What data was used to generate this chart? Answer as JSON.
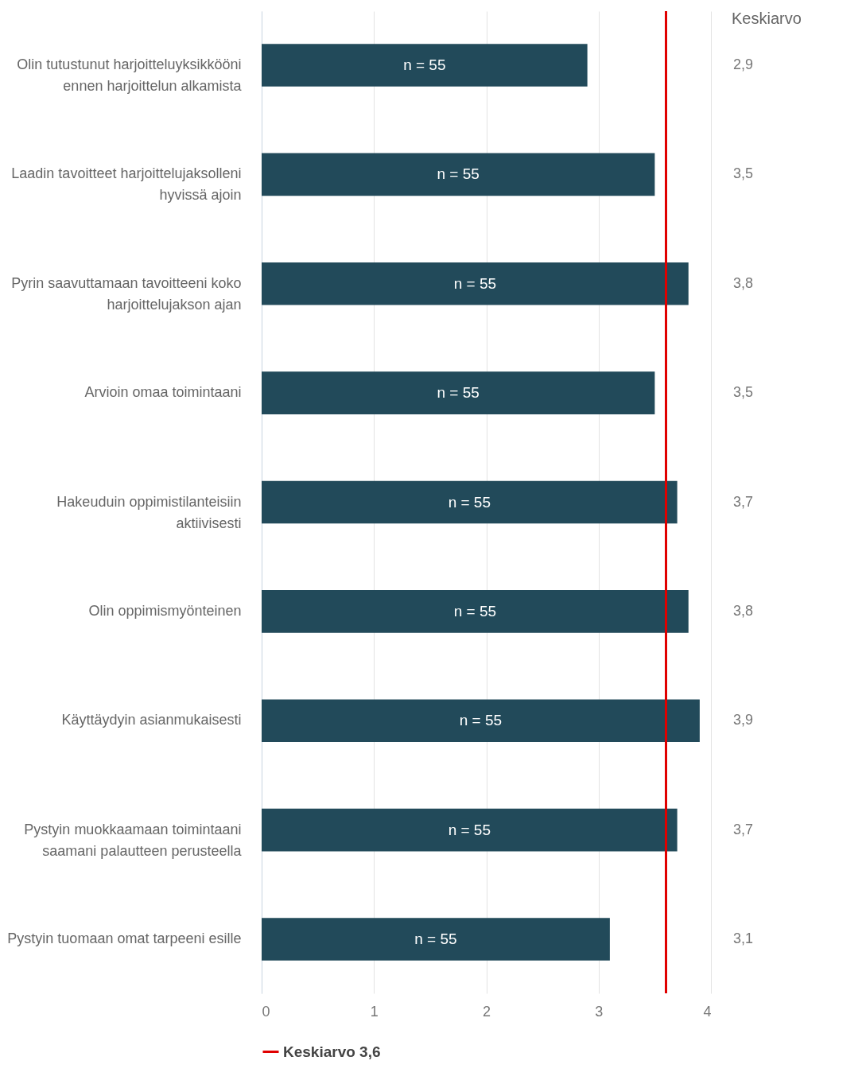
{
  "chart_data": {
    "type": "bar",
    "orientation": "horizontal",
    "categories": [
      "Olin tutustunut harjoitteluyksikkööni ennen harjoittelun alkamista",
      "Laadin tavoitteet harjoittelujaksolleni hyvissä ajoin",
      "Pyrin saavuttamaan tavoitteeni koko harjoittelujakson ajan",
      "Arvioin omaa toimintaani",
      "Hakeuduin oppimistilanteisiin aktiivisesti",
      "Olin oppimismyönteinen",
      "Käyttäydyin asianmukaisesti",
      "Pystyin muokkaamaan toimintaani saamani palautteen perusteella",
      "Pystyin tuomaan omat tarpeeni esille"
    ],
    "values": [
      2.9,
      3.5,
      3.8,
      3.5,
      3.7,
      3.8,
      3.9,
      3.7,
      3.1
    ],
    "value_labels": [
      "2,9",
      "3,5",
      "3,8",
      "3,5",
      "3,7",
      "3,8",
      "3,9",
      "3,7",
      "3,1"
    ],
    "color": "#224a5a",
    "xlim": [
      0,
      4
    ],
    "xticks": [
      0,
      1,
      2,
      3,
      4
    ],
    "grid": "x",
    "legend": "bottom",
    "ref_lines": [
      {
        "axis": "x",
        "value": 3.6,
        "label": "Keskiarvo 3,6",
        "color": "#e00000"
      }
    ],
    "annotations": [
      "Keskiarvo",
      "n = 55",
      "n = 55",
      "n = 55",
      "n = 55",
      "n = 55",
      "n = 55",
      "n = 55",
      "n = 55",
      "n = 55"
    ]
  }
}
